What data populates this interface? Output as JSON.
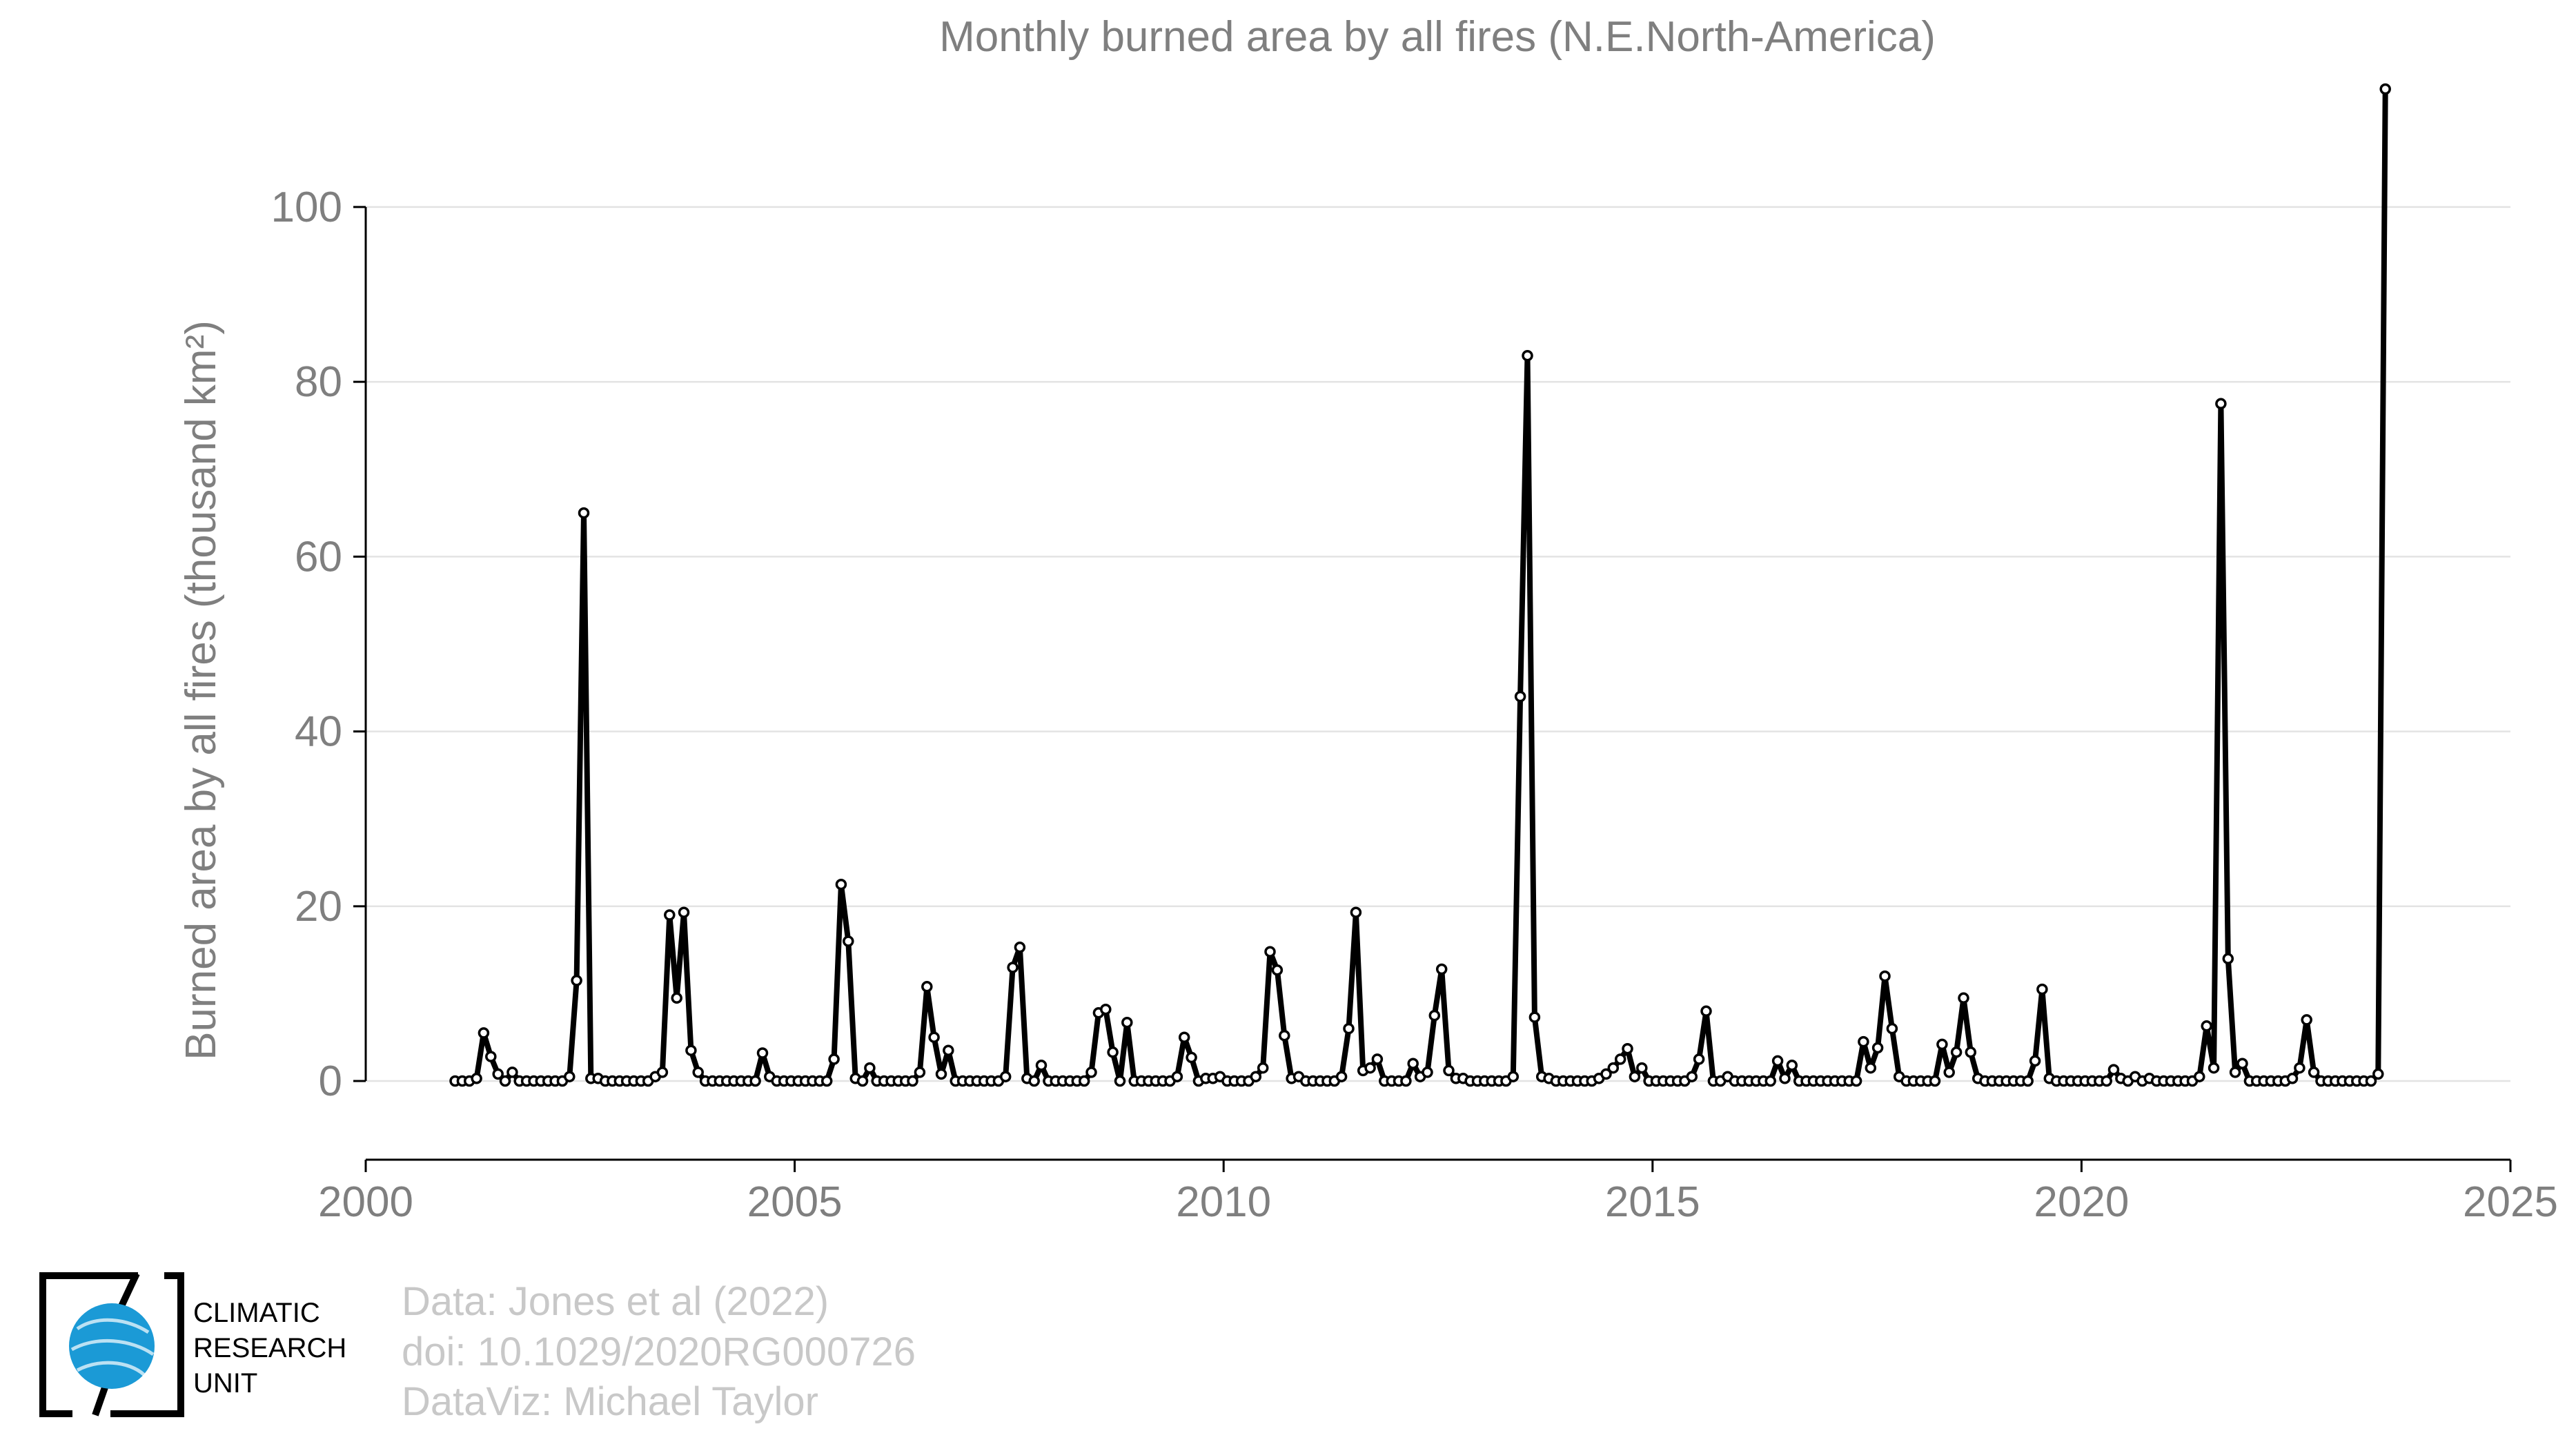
{
  "chart_data": {
    "type": "line",
    "title": "Monthly burned area by all fires (N.E.North-America)",
    "ylabel": "Burned area by all fires (thousand km²)",
    "xlabel": "",
    "xlim": [
      2000,
      2025
    ],
    "ylim": [
      -9,
      115
    ],
    "x_ticks": [
      "2000",
      "2005",
      "2010",
      "2015",
      "2020",
      "2025"
    ],
    "y_ticks": [
      "0",
      "20",
      "40",
      "60",
      "80",
      "100"
    ],
    "grid": "horizontal",
    "legend": "none",
    "x_start": "2001-01",
    "x_step": "1 month",
    "series": [
      {
        "values": [
          0,
          0,
          0,
          0.3,
          5.5,
          2.8,
          0.8,
          0,
          1,
          0,
          0,
          0,
          0,
          0,
          0,
          0,
          0.5,
          11.5,
          65,
          0.3,
          0.3,
          0,
          0,
          0,
          0,
          0,
          0,
          0,
          0.5,
          1,
          19,
          9.5,
          19.3,
          3.5,
          1,
          0,
          0,
          0,
          0,
          0,
          0,
          0,
          0,
          3.2,
          0.5,
          0,
          0,
          0,
          0,
          0,
          0,
          0,
          0,
          2.5,
          22.5,
          16,
          0.3,
          0,
          1.5,
          0,
          0,
          0,
          0,
          0,
          0,
          1,
          10.8,
          5,
          0.8,
          3.5,
          0,
          0,
          0,
          0,
          0,
          0,
          0,
          0.5,
          13,
          15.3,
          0.3,
          0,
          1.8,
          0,
          0,
          0,
          0,
          0,
          0,
          1,
          7.8,
          8.2,
          3.3,
          0,
          6.7,
          0,
          0,
          0,
          0,
          0,
          0,
          0.5,
          5,
          2.7,
          0,
          0.3,
          0.3,
          0.5,
          0,
          0,
          0,
          0,
          0.5,
          1.5,
          14.8,
          12.7,
          5.2,
          0.3,
          0.5,
          0,
          0,
          0,
          0,
          0,
          0.5,
          6,
          19.3,
          1.2,
          1.5,
          2.5,
          0,
          0,
          0,
          0,
          2,
          0.5,
          1,
          7.5,
          12.8,
          1.2,
          0.3,
          0.3,
          0,
          0,
          0,
          0,
          0,
          0,
          0.5,
          44,
          83,
          7.3,
          0.5,
          0.3,
          0,
          0,
          0,
          0,
          0,
          0,
          0.3,
          0.8,
          1.5,
          2.5,
          3.7,
          0.5,
          1.5,
          0,
          0,
          0,
          0,
          0,
          0,
          0.5,
          2.5,
          8,
          0,
          0,
          0.5,
          0,
          0,
          0,
          0,
          0,
          0,
          2.3,
          0.3,
          1.8,
          0,
          0,
          0,
          0,
          0,
          0,
          0,
          0,
          0,
          4.5,
          1.5,
          3.8,
          12,
          6,
          0.5,
          0,
          0,
          0,
          0,
          0,
          4.2,
          1,
          3.3,
          9.5,
          3.3,
          0.3,
          0,
          0,
          0,
          0,
          0,
          0,
          0,
          2.3,
          10.5,
          0.3,
          0,
          0,
          0,
          0,
          0,
          0,
          0,
          0,
          1.3,
          0.3,
          0,
          0.5,
          0,
          0.3,
          0,
          0,
          0,
          0,
          0,
          0,
          0.5,
          6.3,
          1.5,
          77.5,
          14,
          1,
          2,
          0,
          0,
          0,
          0,
          0,
          0,
          0.3,
          1.5,
          7,
          1,
          0,
          0,
          0,
          0,
          0,
          0,
          0,
          0,
          0.8,
          113.5
        ]
      }
    ]
  },
  "credits": {
    "lines": [
      "Data: Jones et al (2022)",
      "doi: 10.1029/2020RG000726",
      "DataViz: Michael Taylor"
    ]
  },
  "logo": {
    "text_lines": [
      "CLIMATIC",
      "RESEARCH",
      "UNIT"
    ],
    "globe_color": "#1b9ad6"
  }
}
